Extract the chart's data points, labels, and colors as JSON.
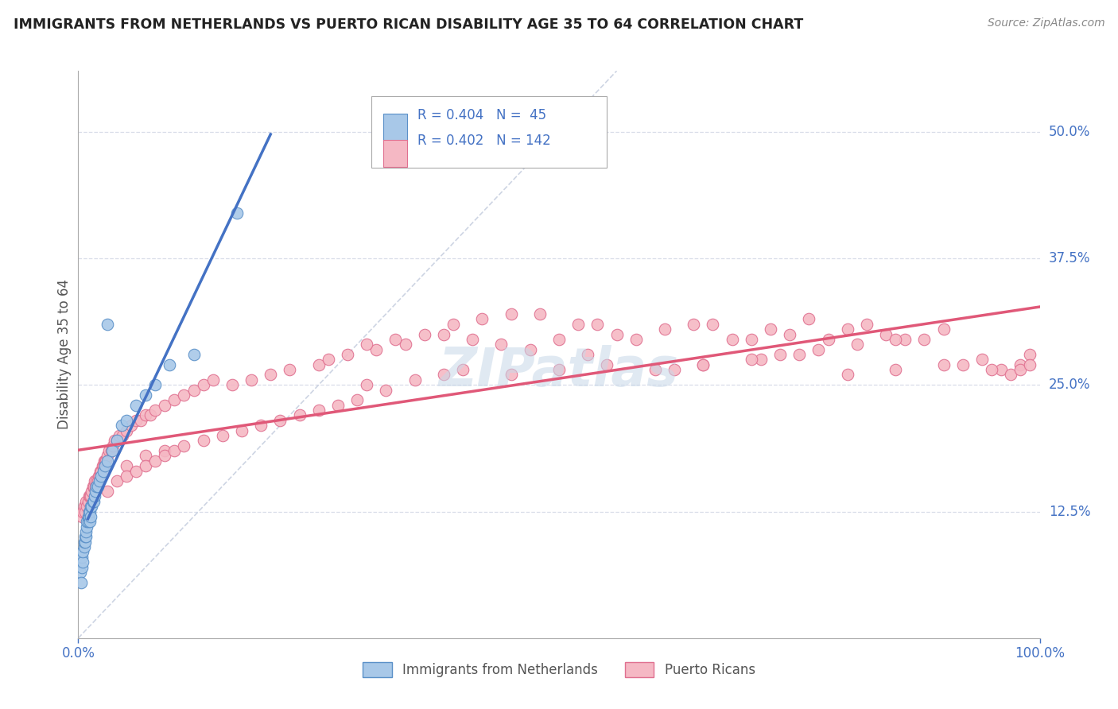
{
  "title": "IMMIGRANTS FROM NETHERLANDS VS PUERTO RICAN DISABILITY AGE 35 TO 64 CORRELATION CHART",
  "source": "Source: ZipAtlas.com",
  "ylabel": "Disability Age 35 to 64",
  "ytick_labels": [
    "12.5%",
    "25.0%",
    "37.5%",
    "50.0%"
  ],
  "ytick_values": [
    0.125,
    0.25,
    0.375,
    0.5
  ],
  "xlim": [
    0.0,
    1.0
  ],
  "ylim": [
    0.0,
    0.56
  ],
  "legend_label1": "Immigrants from Netherlands",
  "legend_label2": "Puerto Ricans",
  "r1": "0.404",
  "n1": "45",
  "r2": "0.402",
  "n2": "142",
  "color_blue_fill": "#A8C8E8",
  "color_blue_edge": "#5A90C8",
  "color_pink_fill": "#F5B8C4",
  "color_pink_edge": "#E07090",
  "color_blue_line": "#4472C4",
  "color_pink_line": "#E05878",
  "color_diag": "#C8D0E0",
  "color_grid": "#D8DCE8",
  "blue_x": [
    0.002,
    0.003,
    0.004,
    0.004,
    0.005,
    0.005,
    0.006,
    0.006,
    0.007,
    0.007,
    0.008,
    0.008,
    0.009,
    0.009,
    0.01,
    0.01,
    0.011,
    0.011,
    0.012,
    0.012,
    0.013,
    0.013,
    0.014,
    0.015,
    0.016,
    0.017,
    0.018,
    0.019,
    0.02,
    0.022,
    0.024,
    0.026,
    0.028,
    0.03,
    0.035,
    0.04,
    0.045,
    0.05,
    0.06,
    0.07,
    0.08,
    0.095,
    0.03,
    0.12,
    0.165
  ],
  "blue_y": [
    0.065,
    0.055,
    0.07,
    0.08,
    0.075,
    0.085,
    0.09,
    0.095,
    0.095,
    0.1,
    0.1,
    0.105,
    0.11,
    0.115,
    0.115,
    0.12,
    0.12,
    0.125,
    0.115,
    0.125,
    0.12,
    0.13,
    0.13,
    0.135,
    0.135,
    0.14,
    0.145,
    0.15,
    0.15,
    0.155,
    0.16,
    0.165,
    0.17,
    0.175,
    0.185,
    0.195,
    0.21,
    0.215,
    0.23,
    0.24,
    0.25,
    0.27,
    0.31,
    0.28,
    0.42
  ],
  "pink_x": [
    0.004,
    0.005,
    0.006,
    0.007,
    0.008,
    0.009,
    0.01,
    0.011,
    0.012,
    0.013,
    0.014,
    0.015,
    0.016,
    0.017,
    0.018,
    0.019,
    0.02,
    0.021,
    0.022,
    0.023,
    0.024,
    0.025,
    0.026,
    0.027,
    0.028,
    0.029,
    0.03,
    0.032,
    0.034,
    0.036,
    0.038,
    0.04,
    0.043,
    0.046,
    0.05,
    0.055,
    0.06,
    0.065,
    0.07,
    0.075,
    0.08,
    0.09,
    0.1,
    0.11,
    0.12,
    0.13,
    0.14,
    0.16,
    0.18,
    0.2,
    0.22,
    0.25,
    0.28,
    0.31,
    0.34,
    0.36,
    0.39,
    0.42,
    0.45,
    0.48,
    0.5,
    0.52,
    0.54,
    0.56,
    0.58,
    0.61,
    0.64,
    0.66,
    0.68,
    0.7,
    0.72,
    0.74,
    0.76,
    0.78,
    0.8,
    0.82,
    0.84,
    0.86,
    0.88,
    0.9,
    0.92,
    0.94,
    0.96,
    0.98,
    0.99,
    0.26,
    0.3,
    0.33,
    0.38,
    0.41,
    0.44,
    0.47,
    0.53,
    0.62,
    0.65,
    0.71,
    0.73,
    0.77,
    0.81,
    0.85,
    0.05,
    0.07,
    0.09,
    0.3,
    0.45,
    0.5,
    0.55,
    0.6,
    0.65,
    0.7,
    0.75,
    0.8,
    0.85,
    0.9,
    0.95,
    0.97,
    0.98,
    0.99,
    0.03,
    0.04,
    0.05,
    0.06,
    0.07,
    0.08,
    0.09,
    0.1,
    0.11,
    0.13,
    0.15,
    0.17,
    0.19,
    0.21,
    0.23,
    0.25,
    0.27,
    0.29,
    0.32,
    0.35,
    0.38,
    0.4
  ],
  "pink_y": [
    0.12,
    0.125,
    0.13,
    0.125,
    0.135,
    0.13,
    0.135,
    0.14,
    0.14,
    0.14,
    0.145,
    0.15,
    0.15,
    0.155,
    0.15,
    0.155,
    0.155,
    0.16,
    0.16,
    0.165,
    0.165,
    0.17,
    0.17,
    0.175,
    0.175,
    0.175,
    0.18,
    0.185,
    0.185,
    0.19,
    0.195,
    0.195,
    0.2,
    0.2,
    0.205,
    0.21,
    0.215,
    0.215,
    0.22,
    0.22,
    0.225,
    0.23,
    0.235,
    0.24,
    0.245,
    0.25,
    0.255,
    0.25,
    0.255,
    0.26,
    0.265,
    0.27,
    0.28,
    0.285,
    0.29,
    0.3,
    0.31,
    0.315,
    0.32,
    0.32,
    0.295,
    0.31,
    0.31,
    0.3,
    0.295,
    0.305,
    0.31,
    0.31,
    0.295,
    0.295,
    0.305,
    0.3,
    0.315,
    0.295,
    0.305,
    0.31,
    0.3,
    0.295,
    0.295,
    0.305,
    0.27,
    0.275,
    0.265,
    0.27,
    0.28,
    0.275,
    0.29,
    0.295,
    0.3,
    0.295,
    0.29,
    0.285,
    0.28,
    0.265,
    0.27,
    0.275,
    0.28,
    0.285,
    0.29,
    0.295,
    0.17,
    0.18,
    0.185,
    0.25,
    0.26,
    0.265,
    0.27,
    0.265,
    0.27,
    0.275,
    0.28,
    0.26,
    0.265,
    0.27,
    0.265,
    0.26,
    0.265,
    0.27,
    0.145,
    0.155,
    0.16,
    0.165,
    0.17,
    0.175,
    0.18,
    0.185,
    0.19,
    0.195,
    0.2,
    0.205,
    0.21,
    0.215,
    0.22,
    0.225,
    0.23,
    0.235,
    0.245,
    0.255,
    0.26,
    0.265
  ]
}
